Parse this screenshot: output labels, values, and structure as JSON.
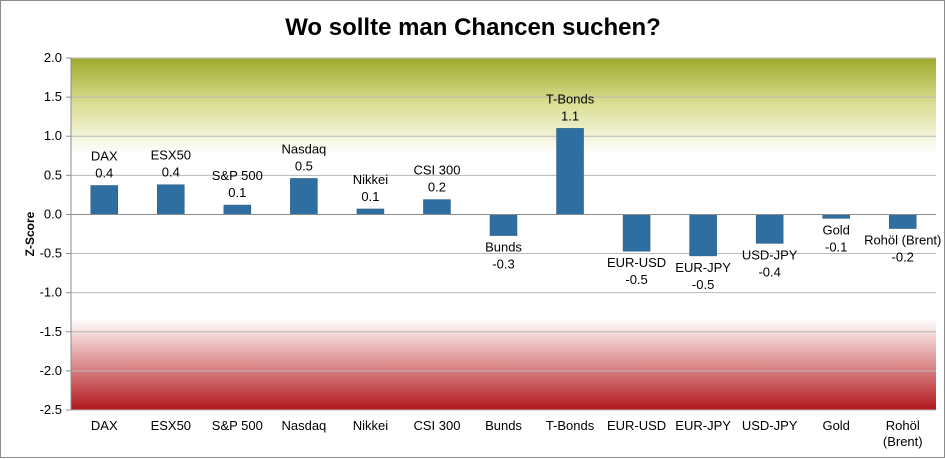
{
  "chart_data": {
    "type": "bar",
    "title": "Wo sollte man Chancen suchen?",
    "xlabel": "",
    "ylabel": "Z-Score",
    "ylim": [
      -2.5,
      2.0
    ],
    "yticks": [
      "2.0",
      "1.5",
      "1.0",
      "0.5",
      "0.0",
      "-0.5",
      "-1.0",
      "-1.5",
      "-2.0",
      "-2.5"
    ],
    "grid": true,
    "legend": "none",
    "categories": [
      "DAX",
      "ESX50",
      "S&P 500",
      "Nasdaq",
      "Nikkei",
      "CSI 300",
      "Bunds",
      "T-Bonds",
      "EUR-USD",
      "EUR-JPY",
      "USD-JPY",
      "Gold",
      "Rohöl (Brent)"
    ],
    "category_lines": [
      [
        "DAX"
      ],
      [
        "ESX50"
      ],
      [
        "S&P 500"
      ],
      [
        "Nasdaq"
      ],
      [
        "Nikkei"
      ],
      [
        "CSI 300"
      ],
      [
        "Bunds"
      ],
      [
        "T-Bonds"
      ],
      [
        "EUR-USD"
      ],
      [
        "EUR-JPY"
      ],
      [
        "USD-JPY"
      ],
      [
        "Gold"
      ],
      [
        "Rohöl",
        "(Brent)"
      ]
    ],
    "values": [
      0.37,
      0.38,
      0.12,
      0.46,
      0.07,
      0.19,
      -0.27,
      1.1,
      -0.47,
      -0.53,
      -0.37,
      -0.05,
      -0.18
    ],
    "value_labels": [
      "0.4",
      "0.4",
      "0.1",
      "0.5",
      "0.1",
      "0.2",
      "-0.3",
      "1.1",
      "-0.5",
      "-0.5",
      "-0.4",
      "-0.1",
      "-0.2"
    ],
    "colors": {
      "bar": "#2e6ea1",
      "bar_edge": "#24577f",
      "band_top": "#9da92c",
      "band_bottom": "#b0161c",
      "grid": "#b9b9b9"
    }
  }
}
